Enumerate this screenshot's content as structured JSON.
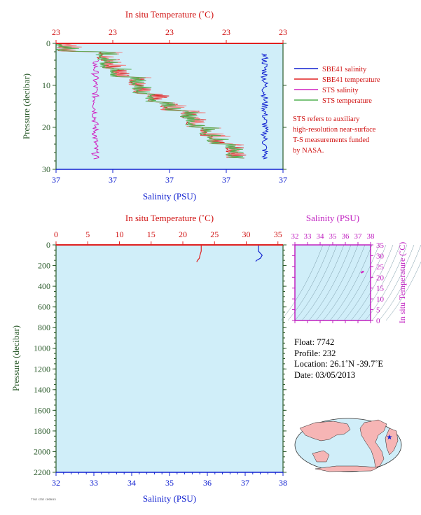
{
  "chart_data": [
    {
      "type": "line",
      "title": "",
      "x_top_label": "In situ Temperature (˚C)",
      "x_top_ticks": [
        "23",
        "23",
        "23",
        "23",
        "23"
      ],
      "x_bottom_label": "Salinity (PSU)",
      "x_bottom_ticks": [
        "37",
        "37",
        "37",
        "37",
        "37"
      ],
      "ylabel": "Pressure (decibar)",
      "ylim": [
        0,
        30
      ],
      "y_ticks": [
        0,
        10,
        20,
        30
      ],
      "y_tick_labels": [
        "0",
        "10",
        "20",
        "30"
      ],
      "legend": [
        {
          "name": "SBE41 salinity",
          "color": "#1020d0"
        },
        {
          "name": "SBE41 temperature",
          "color": "#e02020"
        },
        {
          "name": "STS salinity",
          "color": "#d020c0"
        },
        {
          "name": "STS temperature",
          "color": "#50b050"
        }
      ],
      "legend_placement": "right"
    },
    {
      "type": "line",
      "title": "",
      "x_top_label": "In situ Temperature (˚C)",
      "x_top_ticks": [
        "0",
        "5",
        "10",
        "15",
        "20",
        "25",
        "30",
        "35"
      ],
      "x_bottom_label": "Salinity (PSU)",
      "x_bottom_ticks": [
        "32",
        "33",
        "34",
        "35",
        "36",
        "37",
        "38"
      ],
      "ylabel": "Pressure (decibar)",
      "ylim": [
        0,
        2200
      ],
      "y_ticks": [
        0,
        200,
        400,
        600,
        800,
        1000,
        1200,
        1400,
        1600,
        1800,
        2000,
        2200
      ],
      "y_tick_labels": [
        "0",
        "200",
        "400",
        "600",
        "800",
        "1000",
        "1200",
        "1400",
        "1600",
        "1800",
        "2000",
        "2200"
      ],
      "temperature_series": {
        "name": "In situ Temperature",
        "color": "#e02020",
        "x": [
          22.9,
          22.9,
          22.7,
          22.6,
          22.3,
          22.2
        ],
        "y": [
          0,
          60,
          100,
          130,
          150,
          165
        ]
      },
      "salinity_series": {
        "name": "Salinity",
        "color": "#1020d0",
        "x": [
          37.35,
          37.35,
          37.45,
          37.4,
          37.3,
          37.28
        ],
        "y": [
          0,
          60,
          100,
          130,
          150,
          160
        ]
      }
    },
    {
      "type": "scatter",
      "title": "",
      "x_label": "Salinity (PSU)",
      "x_ticks": [
        "32",
        "33",
        "34",
        "35",
        "36",
        "37",
        "38"
      ],
      "y_label": "In situ Temperature (˚C)",
      "y_ticks": [
        "0",
        "5",
        "10",
        "15",
        "20",
        "25",
        "30",
        "35"
      ],
      "xlim": [
        32,
        38
      ],
      "ylim": [
        0,
        35
      ],
      "points": [
        {
          "x": 37.4,
          "y": 22.6
        },
        {
          "x": 37.3,
          "y": 22.3
        }
      ],
      "color": "#d020c0"
    }
  ],
  "note": [
    "STS refers to auxiliary",
    "high-resolution near-surface",
    "T-S measurements funded",
    "by NASA."
  ],
  "float_info": {
    "float": "Float:  7742",
    "profile": "Profile:  232",
    "location": "Location:  26.1˚N  -39.7˚E",
    "date": "Date:  03/05/2013"
  },
  "map": {
    "marker": {
      "lat": 26.1,
      "lon": -39.7,
      "color": "#1020d0"
    }
  },
  "footer_id": "7742 / 232 / 3/05/13",
  "colors": {
    "temperature": "#e02020",
    "salinity": "#1020d0",
    "pressure": "#3a6a3a",
    "sts_salinity": "#d020c0",
    "sts_temperature": "#50b050",
    "plot_bg": "#d0eef9",
    "ts_axis": "#c020c0"
  }
}
